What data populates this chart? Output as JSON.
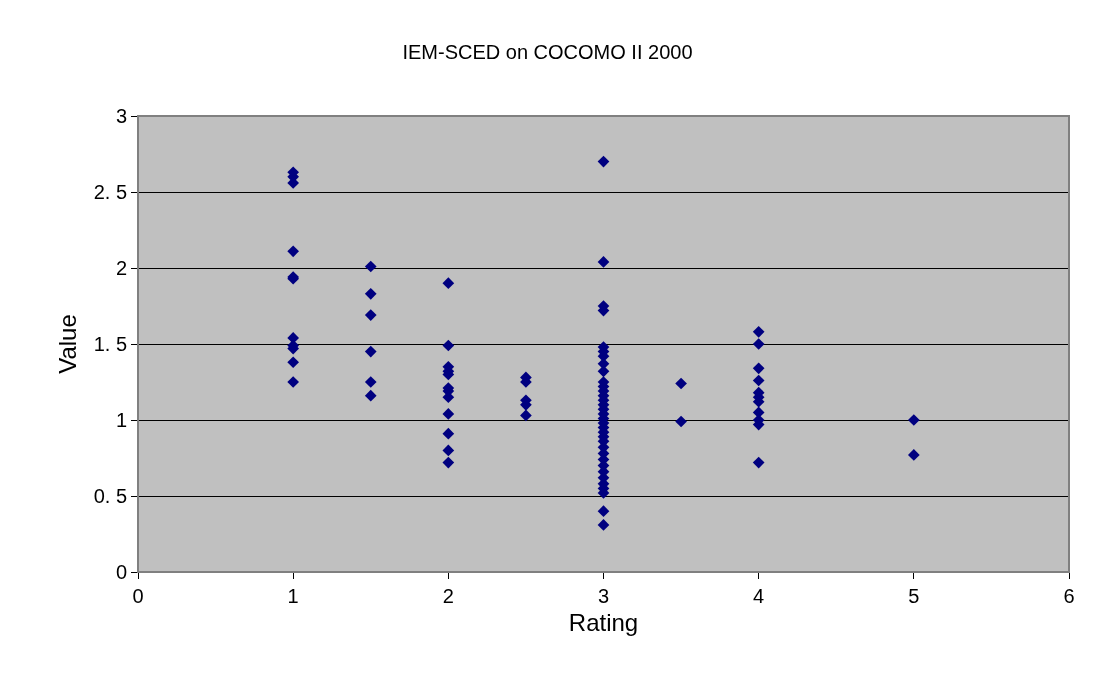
{
  "chart_data": {
    "type": "scatter",
    "title": "IEM-SCED on COCOMO II 2000",
    "xlabel": "Rating",
    "ylabel": "Value",
    "x": [
      1,
      1,
      1,
      1,
      1,
      1,
      1,
      1,
      1,
      1,
      1,
      1.5,
      1.5,
      1.5,
      1.5,
      1.5,
      1.5,
      2,
      2,
      2,
      2,
      2,
      2,
      2,
      2,
      2,
      2,
      2,
      2,
      2.5,
      2.5,
      2.5,
      2.5,
      2.5,
      3,
      3,
      3,
      3,
      3,
      3,
      3,
      3,
      3,
      3,
      3,
      3,
      3,
      3,
      3,
      3,
      3,
      3,
      3,
      3,
      3,
      3,
      3,
      3,
      3,
      3,
      3,
      3,
      3,
      3,
      3,
      3,
      3,
      3,
      3.5,
      3.5,
      4,
      4,
      4,
      4,
      4,
      4,
      4,
      4,
      4,
      4,
      4,
      5,
      5
    ],
    "values": [
      2.63,
      2.6,
      2.56,
      2.11,
      1.94,
      1.93,
      1.54,
      1.49,
      1.47,
      1.38,
      1.25,
      2.01,
      1.83,
      1.69,
      1.45,
      1.25,
      1.16,
      1.9,
      1.49,
      1.35,
      1.32,
      1.3,
      1.21,
      1.19,
      1.15,
      1.04,
      0.91,
      0.8,
      0.72,
      1.28,
      1.25,
      1.13,
      1.1,
      1.03,
      2.7,
      2.04,
      1.75,
      1.72,
      1.48,
      1.45,
      1.42,
      1.37,
      1.32,
      1.25,
      1.22,
      1.19,
      1.16,
      1.13,
      1.1,
      1.07,
      1.04,
      1.01,
      0.98,
      0.95,
      0.92,
      0.89,
      0.86,
      0.82,
      0.78,
      0.74,
      0.7,
      0.66,
      0.62,
      0.58,
      0.55,
      0.52,
      0.4,
      0.31,
      1.24,
      0.99,
      1.58,
      1.5,
      1.34,
      1.26,
      1.18,
      1.15,
      1.12,
      1.05,
      1.0,
      0.97,
      0.72,
      1.0,
      0.77
    ],
    "color": "#000080",
    "marker": "diamond",
    "grid": "y",
    "legend": false,
    "xlim": [
      0,
      6
    ],
    "xticks": [
      0,
      1,
      2,
      3,
      4,
      5,
      6
    ],
    "ylim": [
      0,
      3
    ],
    "yticks": [
      0,
      {
        "value": 0.5,
        "label": "0. 5"
      },
      1,
      {
        "value": 1.5,
        "label": "1. 5"
      },
      2,
      {
        "value": 2.5,
        "label": "2. 5"
      },
      3
    ]
  }
}
